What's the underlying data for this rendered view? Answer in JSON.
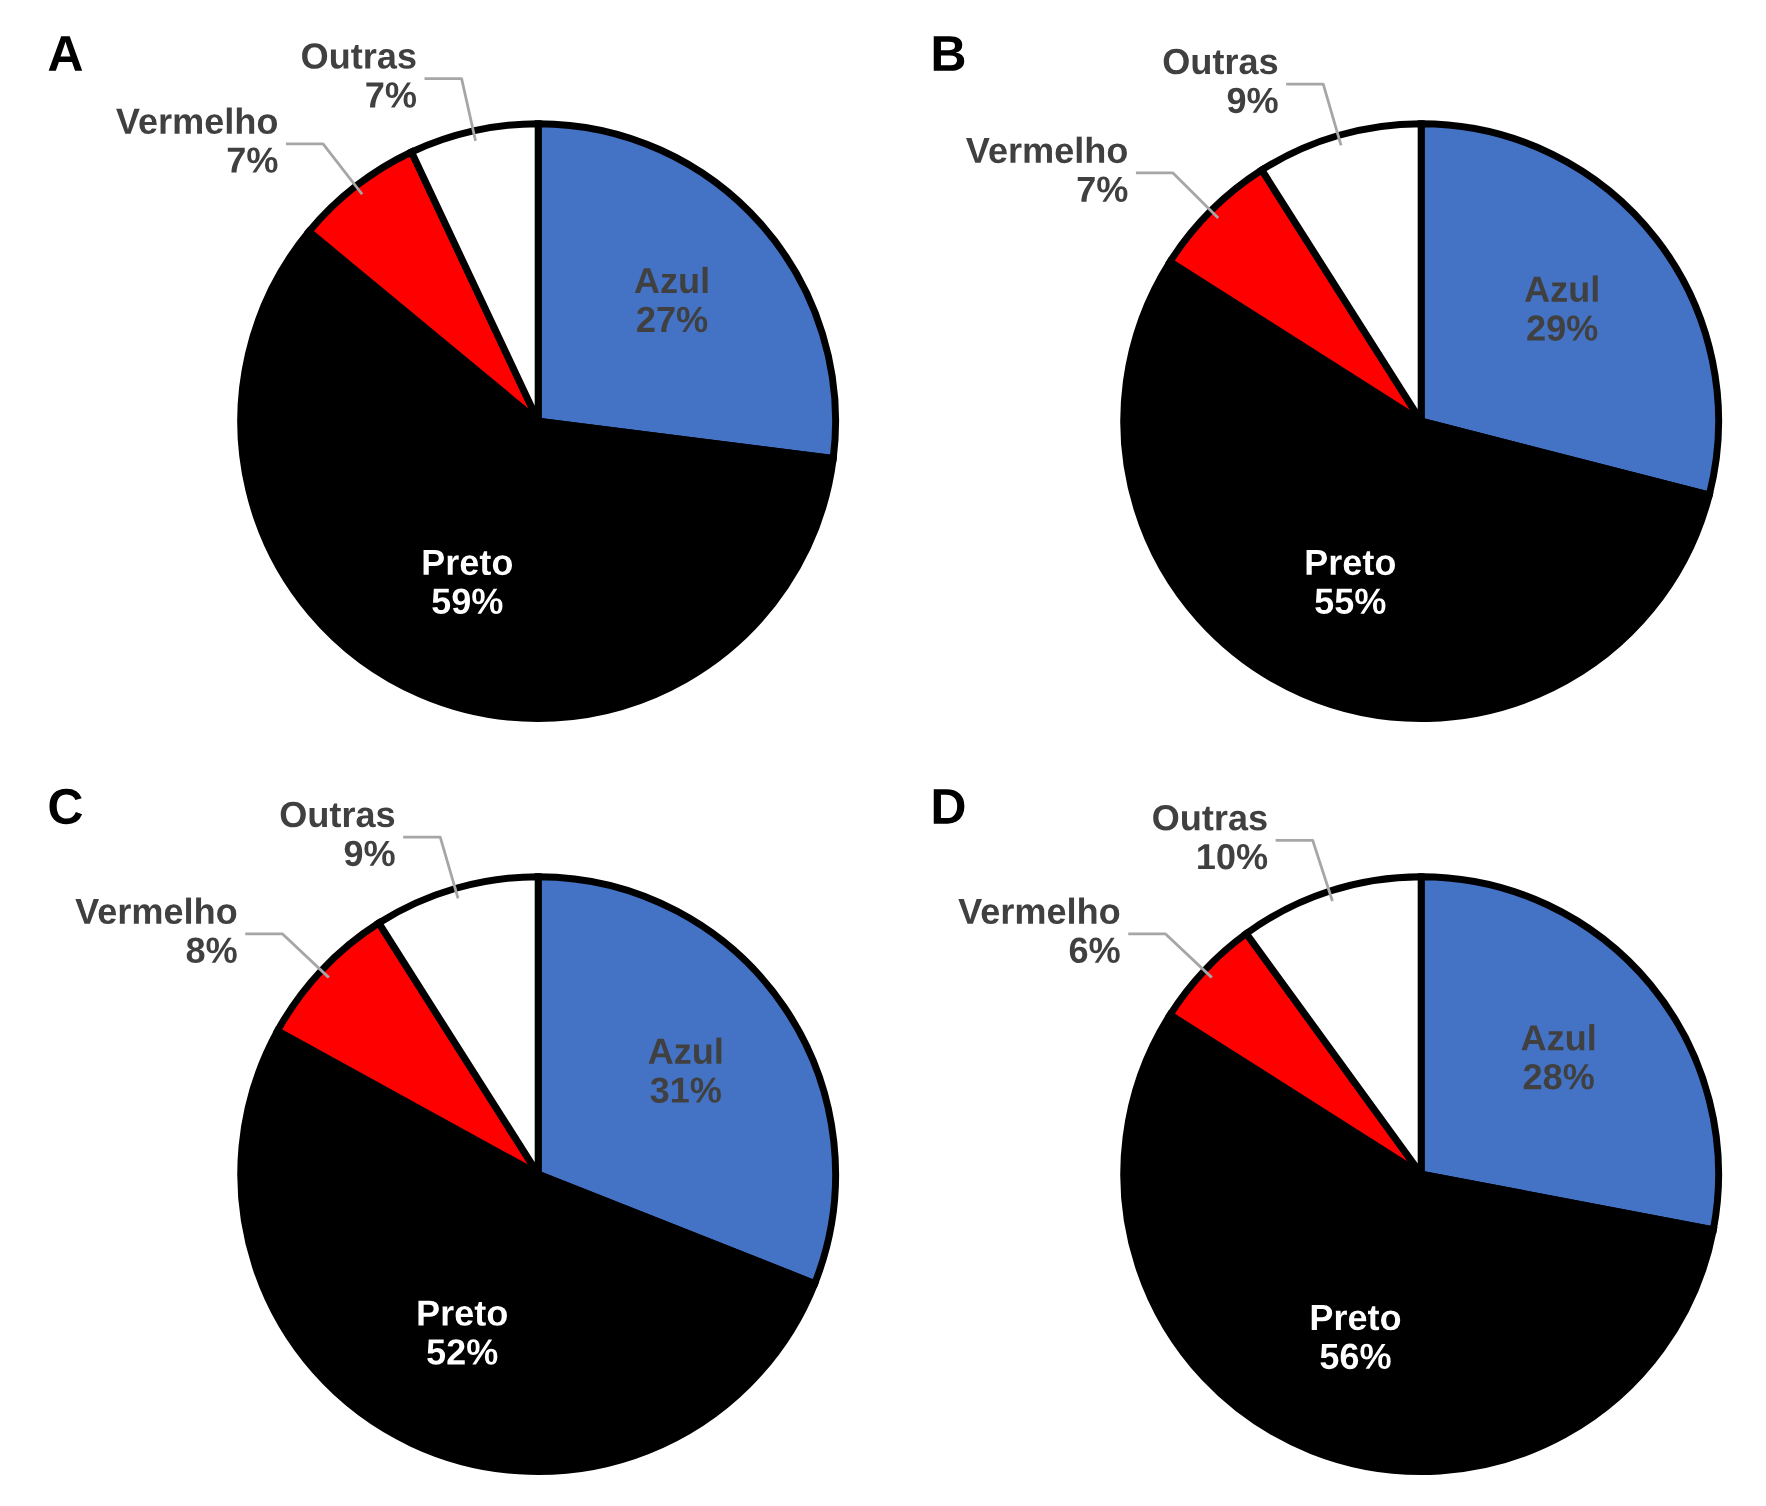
{
  "chart_data": [
    {
      "type": "pie",
      "title": "A",
      "categories": [
        "Azul",
        "Preto",
        "Vermelho",
        "Outras"
      ],
      "values": [
        27,
        59,
        7,
        7
      ],
      "colors": [
        "#4472c4",
        "#000000",
        "#ff0000",
        "#ffffff"
      ],
      "value_labels": [
        "27%",
        "59%",
        "7%",
        "7%"
      ]
    },
    {
      "type": "pie",
      "title": "B",
      "categories": [
        "Azul",
        "Preto",
        "Vermelho",
        "Outras"
      ],
      "values": [
        29,
        55,
        7,
        9
      ],
      "colors": [
        "#4472c4",
        "#000000",
        "#ff0000",
        "#ffffff"
      ],
      "value_labels": [
        "29%",
        "55%",
        "7%",
        "9%"
      ]
    },
    {
      "type": "pie",
      "title": "C",
      "categories": [
        "Azul",
        "Preto",
        "Vermelho",
        "Outras"
      ],
      "values": [
        31,
        52,
        8,
        9
      ],
      "colors": [
        "#4472c4",
        "#000000",
        "#ff0000",
        "#ffffff"
      ],
      "value_labels": [
        "31%",
        "52%",
        "8%",
        "9%"
      ]
    },
    {
      "type": "pie",
      "title": "D",
      "categories": [
        "Azul",
        "Preto",
        "Vermelho",
        "Outras"
      ],
      "values": [
        28,
        56,
        6,
        10
      ],
      "colors": [
        "#4472c4",
        "#000000",
        "#ff0000",
        "#ffffff"
      ],
      "value_labels": [
        "28%",
        "56%",
        "6%",
        "10%"
      ]
    }
  ]
}
